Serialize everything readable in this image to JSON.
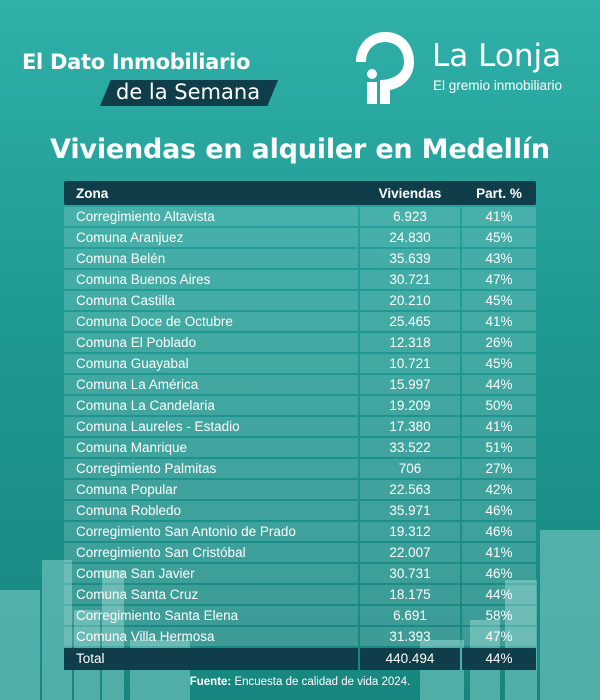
{
  "brand": {
    "campaign_line1": "El Dato Inmobiliario",
    "campaign_line2": "de la Semana",
    "org_name": "La Lonja",
    "org_tagline": "El gremio inmobiliario"
  },
  "title": "Viviendas en alquiler en Medellín",
  "table": {
    "headers": [
      "Zona",
      "Viviendas",
      "Part. %"
    ],
    "rows": [
      {
        "zona": "Corregimiento Altavista",
        "viviendas": "6.923",
        "part": "41%"
      },
      {
        "zona": "Comuna Aranjuez",
        "viviendas": "24.830",
        "part": "45%"
      },
      {
        "zona": "Comuna  Belén",
        "viviendas": "35.639",
        "part": "43%"
      },
      {
        "zona": "Comuna  Buenos Aires",
        "viviendas": "30.721",
        "part": "47%"
      },
      {
        "zona": "Comuna  Castilla",
        "viviendas": "20.210",
        "part": "45%"
      },
      {
        "zona": "Comuna Doce de Octubre",
        "viviendas": "25.465",
        "part": "41%"
      },
      {
        "zona": "Comuna El Poblado",
        "viviendas": "12.318",
        "part": "26%"
      },
      {
        "zona": "Comuna Guayabal",
        "viviendas": "10.721",
        "part": "45%"
      },
      {
        "zona": "Comuna La América",
        "viviendas": "15.997",
        "part": "44%"
      },
      {
        "zona": "Comuna La Candelaria",
        "viviendas": "19.209",
        "part": "50%"
      },
      {
        "zona": "Comuna Laureles - Estadio",
        "viviendas": "17.380",
        "part": "41%"
      },
      {
        "zona": "Comuna Manrique",
        "viviendas": "33.522",
        "part": "51%"
      },
      {
        "zona": "Corregimiento Palmitas",
        "viviendas": "706",
        "part": "27%"
      },
      {
        "zona": "Comuna Popular",
        "viviendas": "22.563",
        "part": "42%"
      },
      {
        "zona": "Comuna Robledo",
        "viviendas": "35.971",
        "part": "46%"
      },
      {
        "zona": "Corregimiento San Antonio de Prado",
        "viviendas": "19.312",
        "part": "46%"
      },
      {
        "zona": "Corregimiento San Cristóbal",
        "viviendas": "22.007",
        "part": "41%"
      },
      {
        "zona": "Comuna San Javier",
        "viviendas": "30.731",
        "part": "46%"
      },
      {
        "zona": "Comuna Santa Cruz",
        "viviendas": "18.175",
        "part": "44%"
      },
      {
        "zona": "Corregimiento Santa Elena",
        "viviendas": "6.691",
        "part": "58%"
      },
      {
        "zona": "Comuna Villa Hermosa",
        "viviendas": "31.393",
        "part": "47%"
      }
    ],
    "total": {
      "zona": "Total",
      "viviendas": "440.494",
      "part": "44%"
    }
  },
  "footer": {
    "source_label": "Fuente:",
    "source_text": " Encuesta de calidad de vida 2024."
  },
  "colors": {
    "background": "#1f9a93",
    "header_band": "#0f3e4a",
    "row_tint": "rgba(255,255,255,.16)",
    "text": "#ffffff"
  }
}
